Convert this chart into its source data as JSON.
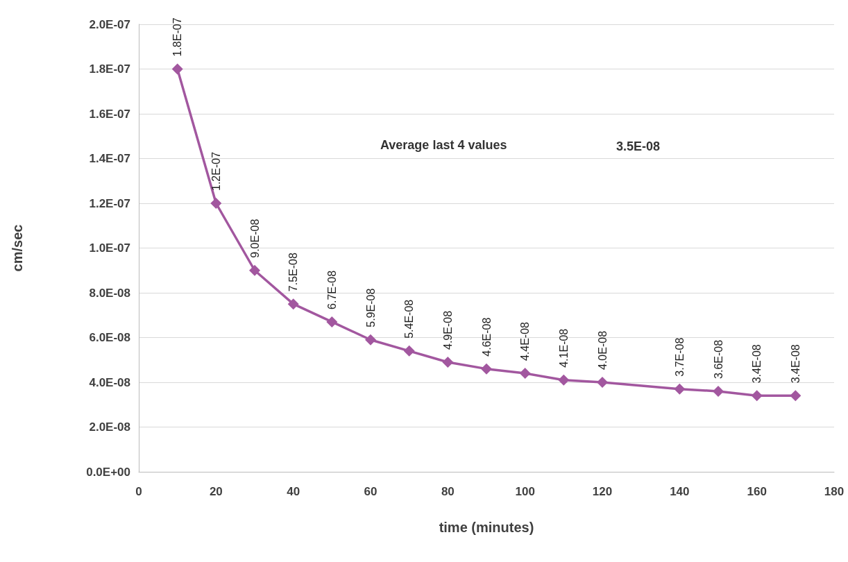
{
  "chart_data": {
    "type": "line",
    "xlabel": "time (minutes)",
    "ylabel": "cm/sec",
    "x": [
      10,
      20,
      30,
      40,
      50,
      60,
      70,
      80,
      90,
      100,
      110,
      120,
      140,
      150,
      160,
      170
    ],
    "series": [
      {
        "color": "#a2579f",
        "values": [
          1.8e-07,
          1.2e-07,
          9e-08,
          7.5e-08,
          6.7e-08,
          5.9e-08,
          5.4e-08,
          4.9e-08,
          4.6e-08,
          4.4e-08,
          4.1e-08,
          4e-08,
          3.7e-08,
          3.6e-08,
          3.4e-08,
          3.4e-08
        ],
        "value_labels": [
          "1.8E-07",
          "1.2E-07",
          "9.0E-08",
          "7.5E-08",
          "6.7E-08",
          "5.9E-08",
          "5.4E-08",
          "4.9E-08",
          "4.6E-08",
          "4.4E-08",
          "4.1E-08",
          "4.0E-08",
          "3.7E-08",
          "3.6E-08",
          "3.4E-08",
          "3.4E-08"
        ]
      }
    ],
    "xlim": [
      0,
      180
    ],
    "xticks": [
      0,
      20,
      40,
      60,
      80,
      100,
      120,
      140,
      160,
      180
    ],
    "ylim": [
      0,
      2e-07
    ],
    "yticks": [
      {
        "value": 0,
        "label": "0.0E+00"
      },
      {
        "value": 2e-08,
        "label": "2.0E-08"
      },
      {
        "value": 4e-08,
        "label": "4.0E-08"
      },
      {
        "value": 6e-08,
        "label": "6.0E-08"
      },
      {
        "value": 8e-08,
        "label": "8.0E-08"
      },
      {
        "value": 1e-07,
        "label": "1.0E-07"
      },
      {
        "value": 1.2e-07,
        "label": "1.2E-07"
      },
      {
        "value": 1.4e-07,
        "label": "1.4E-07"
      },
      {
        "value": 1.6e-07,
        "label": "1.6E-07"
      },
      {
        "value": 1.8e-07,
        "label": "1.8E-07"
      },
      {
        "value": 2e-07,
        "label": "2.0E-07"
      }
    ],
    "annotations": [
      "Average last 4 values",
      "3.5E-08"
    ],
    "grid": "y",
    "marker": "diamond",
    "line_style": "solid"
  }
}
